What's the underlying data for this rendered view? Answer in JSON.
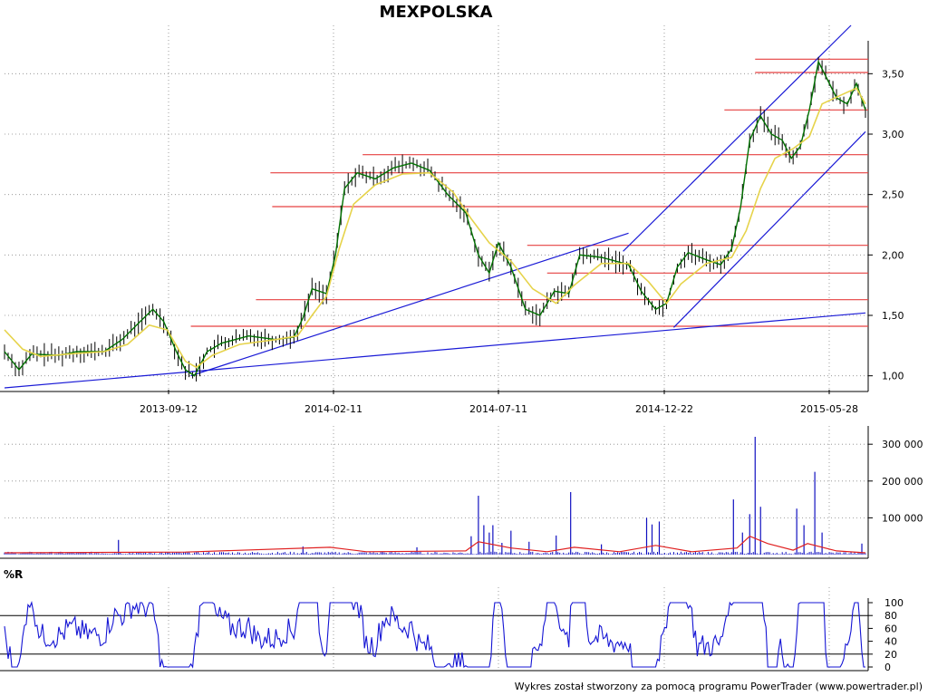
{
  "chart_data": [
    {
      "name": "price",
      "type": "candlestick-line",
      "title": "MEXPOLSKA",
      "ylim": [
        0.9,
        3.9
      ],
      "yticks": [
        1.0,
        1.5,
        2.0,
        2.5,
        3.0,
        3.5
      ],
      "ytick_labels": [
        "1,00",
        "1,50",
        "2,00",
        "2,50",
        "3,00",
        "3,50"
      ],
      "xticks": [
        "2013-09-12",
        "2014-02-11",
        "2014-07-11",
        "2014-12-22",
        "2015-05-28"
      ],
      "grid": true,
      "close_path": [
        [
          0,
          1.2
        ],
        [
          8,
          1.05
        ],
        [
          15,
          1.18
        ],
        [
          30,
          1.17
        ],
        [
          40,
          1.2
        ],
        [
          55,
          1.2
        ],
        [
          65,
          1.3
        ],
        [
          75,
          1.45
        ],
        [
          82,
          1.55
        ],
        [
          88,
          1.45
        ],
        [
          95,
          1.2
        ],
        [
          100,
          1.05
        ],
        [
          105,
          1.0
        ],
        [
          112,
          1.2
        ],
        [
          120,
          1.27
        ],
        [
          135,
          1.33
        ],
        [
          150,
          1.3
        ],
        [
          160,
          1.32
        ],
        [
          165,
          1.48
        ],
        [
          170,
          1.72
        ],
        [
          178,
          1.68
        ],
        [
          183,
          2.0
        ],
        [
          188,
          2.55
        ],
        [
          195,
          2.68
        ],
        [
          205,
          2.63
        ],
        [
          215,
          2.72
        ],
        [
          225,
          2.76
        ],
        [
          235,
          2.7
        ],
        [
          245,
          2.5
        ],
        [
          255,
          2.35
        ],
        [
          262,
          2.0
        ],
        [
          268,
          1.85
        ],
        [
          273,
          2.1
        ],
        [
          280,
          1.9
        ],
        [
          288,
          1.55
        ],
        [
          296,
          1.5
        ],
        [
          304,
          1.7
        ],
        [
          312,
          1.68
        ],
        [
          318,
          2.0
        ],
        [
          330,
          1.98
        ],
        [
          345,
          1.92
        ],
        [
          352,
          1.7
        ],
        [
          360,
          1.55
        ],
        [
          366,
          1.6
        ],
        [
          372,
          1.9
        ],
        [
          378,
          2.02
        ],
        [
          388,
          1.96
        ],
        [
          396,
          1.92
        ],
        [
          402,
          2.05
        ],
        [
          407,
          2.4
        ],
        [
          412,
          2.95
        ],
        [
          418,
          3.15
        ],
        [
          424,
          3.0
        ],
        [
          430,
          2.95
        ],
        [
          435,
          2.8
        ],
        [
          440,
          2.9
        ],
        [
          445,
          3.2
        ],
        [
          450,
          3.6
        ],
        [
          455,
          3.45
        ],
        [
          460,
          3.3
        ],
        [
          466,
          3.25
        ],
        [
          471,
          3.42
        ],
        [
          476,
          3.2
        ]
      ],
      "ma_path": [
        [
          0,
          1.38
        ],
        [
          10,
          1.22
        ],
        [
          20,
          1.16
        ],
        [
          35,
          1.18
        ],
        [
          55,
          1.2
        ],
        [
          68,
          1.26
        ],
        [
          80,
          1.42
        ],
        [
          90,
          1.38
        ],
        [
          100,
          1.12
        ],
        [
          106,
          1.07
        ],
        [
          115,
          1.17
        ],
        [
          130,
          1.26
        ],
        [
          150,
          1.3
        ],
        [
          162,
          1.33
        ],
        [
          170,
          1.5
        ],
        [
          178,
          1.66
        ],
        [
          185,
          2.05
        ],
        [
          193,
          2.42
        ],
        [
          205,
          2.58
        ],
        [
          220,
          2.67
        ],
        [
          235,
          2.68
        ],
        [
          248,
          2.52
        ],
        [
          258,
          2.3
        ],
        [
          268,
          2.1
        ],
        [
          280,
          1.95
        ],
        [
          292,
          1.72
        ],
        [
          305,
          1.6
        ],
        [
          315,
          1.75
        ],
        [
          330,
          1.93
        ],
        [
          345,
          1.93
        ],
        [
          356,
          1.78
        ],
        [
          366,
          1.6
        ],
        [
          374,
          1.76
        ],
        [
          388,
          1.93
        ],
        [
          402,
          1.98
        ],
        [
          410,
          2.2
        ],
        [
          418,
          2.55
        ],
        [
          426,
          2.8
        ],
        [
          436,
          2.88
        ],
        [
          445,
          2.98
        ],
        [
          452,
          3.25
        ],
        [
          462,
          3.32
        ],
        [
          471,
          3.38
        ],
        [
          476,
          3.25
        ]
      ],
      "support_levels": [
        3.62,
        3.51,
        3.2,
        2.83,
        2.68,
        2.4,
        2.08,
        1.85,
        1.63,
        1.41
      ],
      "support_starts": [
        415,
        415,
        398,
        198,
        147,
        148,
        289,
        300,
        139,
        103
      ]
    },
    {
      "name": "volume",
      "type": "bar",
      "ylim": [
        0,
        330000
      ],
      "yticks": [
        100000,
        200000,
        300000
      ],
      "ytick_labels": [
        "100 000",
        "200 000",
        "300 000"
      ],
      "spikes": [
        [
          63,
          40000
        ],
        [
          102,
          5000
        ],
        [
          165,
          22000
        ],
        [
          209,
          8000
        ],
        [
          228,
          20000
        ],
        [
          258,
          50000
        ],
        [
          262,
          160000
        ],
        [
          265,
          80000
        ],
        [
          268,
          60000
        ],
        [
          270,
          80000
        ],
        [
          275,
          32000
        ],
        [
          280,
          65000
        ],
        [
          290,
          35000
        ],
        [
          305,
          52000
        ],
        [
          313,
          170000
        ],
        [
          330,
          28000
        ],
        [
          355,
          100000
        ],
        [
          358,
          82000
        ],
        [
          362,
          90000
        ],
        [
          403,
          150000
        ],
        [
          408,
          60000
        ],
        [
          412,
          110000
        ],
        [
          415,
          320000
        ],
        [
          418,
          130000
        ],
        [
          438,
          125000
        ],
        [
          442,
          80000
        ],
        [
          448,
          225000
        ],
        [
          452,
          60000
        ],
        [
          474,
          30000
        ]
      ],
      "avg_path": [
        [
          0,
          5000
        ],
        [
          100,
          7000
        ],
        [
          180,
          20000
        ],
        [
          200,
          8000
        ],
        [
          255,
          10000
        ],
        [
          262,
          35000
        ],
        [
          280,
          18000
        ],
        [
          300,
          8000
        ],
        [
          315,
          20000
        ],
        [
          340,
          8000
        ],
        [
          360,
          25000
        ],
        [
          380,
          8000
        ],
        [
          405,
          18000
        ],
        [
          412,
          50000
        ],
        [
          422,
          30000
        ],
        [
          436,
          12000
        ],
        [
          444,
          30000
        ],
        [
          460,
          10000
        ],
        [
          476,
          5000
        ]
      ]
    },
    {
      "name": "williams-r",
      "type": "line",
      "title": "%R",
      "ylim": [
        0,
        100
      ],
      "yticks": [
        0,
        20,
        40,
        60,
        80,
        100
      ],
      "ytick_labels": [
        "0",
        "20",
        "40",
        "60",
        "80",
        "100"
      ],
      "ref_lines": [
        20,
        80
      ]
    }
  ],
  "footer": {
    "credit": "Wykres został stworzony za pomocą programu PowerTrader (www.powertrader.pl)"
  },
  "colors": {
    "close_line": "#007000",
    "ma_line": "#e6d34a",
    "candle": "#000000",
    "trend_line": "#1a1ad6",
    "support_line": "#e64040",
    "volume_bar": "#1010c0",
    "volume_avg": "#e02020",
    "williams": "#1414d4",
    "grid": "#888888"
  }
}
